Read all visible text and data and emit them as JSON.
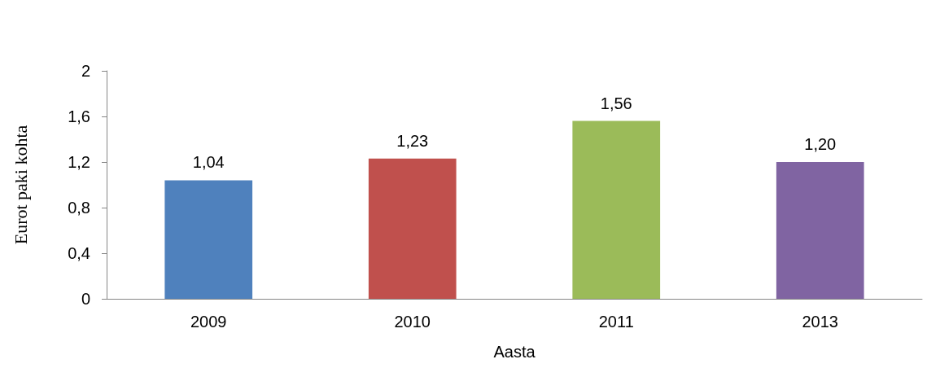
{
  "chart_data": {
    "type": "bar",
    "xlabel": "Aasta",
    "ylabel": "Eurot paki kohta",
    "categories": [
      "2009",
      "2010",
      "2011",
      "2013"
    ],
    "values": [
      1.04,
      1.23,
      1.56,
      1.2
    ],
    "colors": [
      "#4f81bd",
      "#c0504d",
      "#9bbb59",
      "#8064a2"
    ],
    "value_labels": [
      "1,04",
      "1,23",
      "1,56",
      "1,20"
    ],
    "ylim": [
      0,
      2
    ],
    "yticks": [
      0,
      {
        "value": 0.4,
        "label": "0,4"
      },
      {
        "value": 0.8,
        "label": "0,8"
      },
      {
        "value": 1.2,
        "label": "1,2"
      },
      {
        "value": 1.6,
        "label": "1,6"
      },
      2
    ]
  }
}
